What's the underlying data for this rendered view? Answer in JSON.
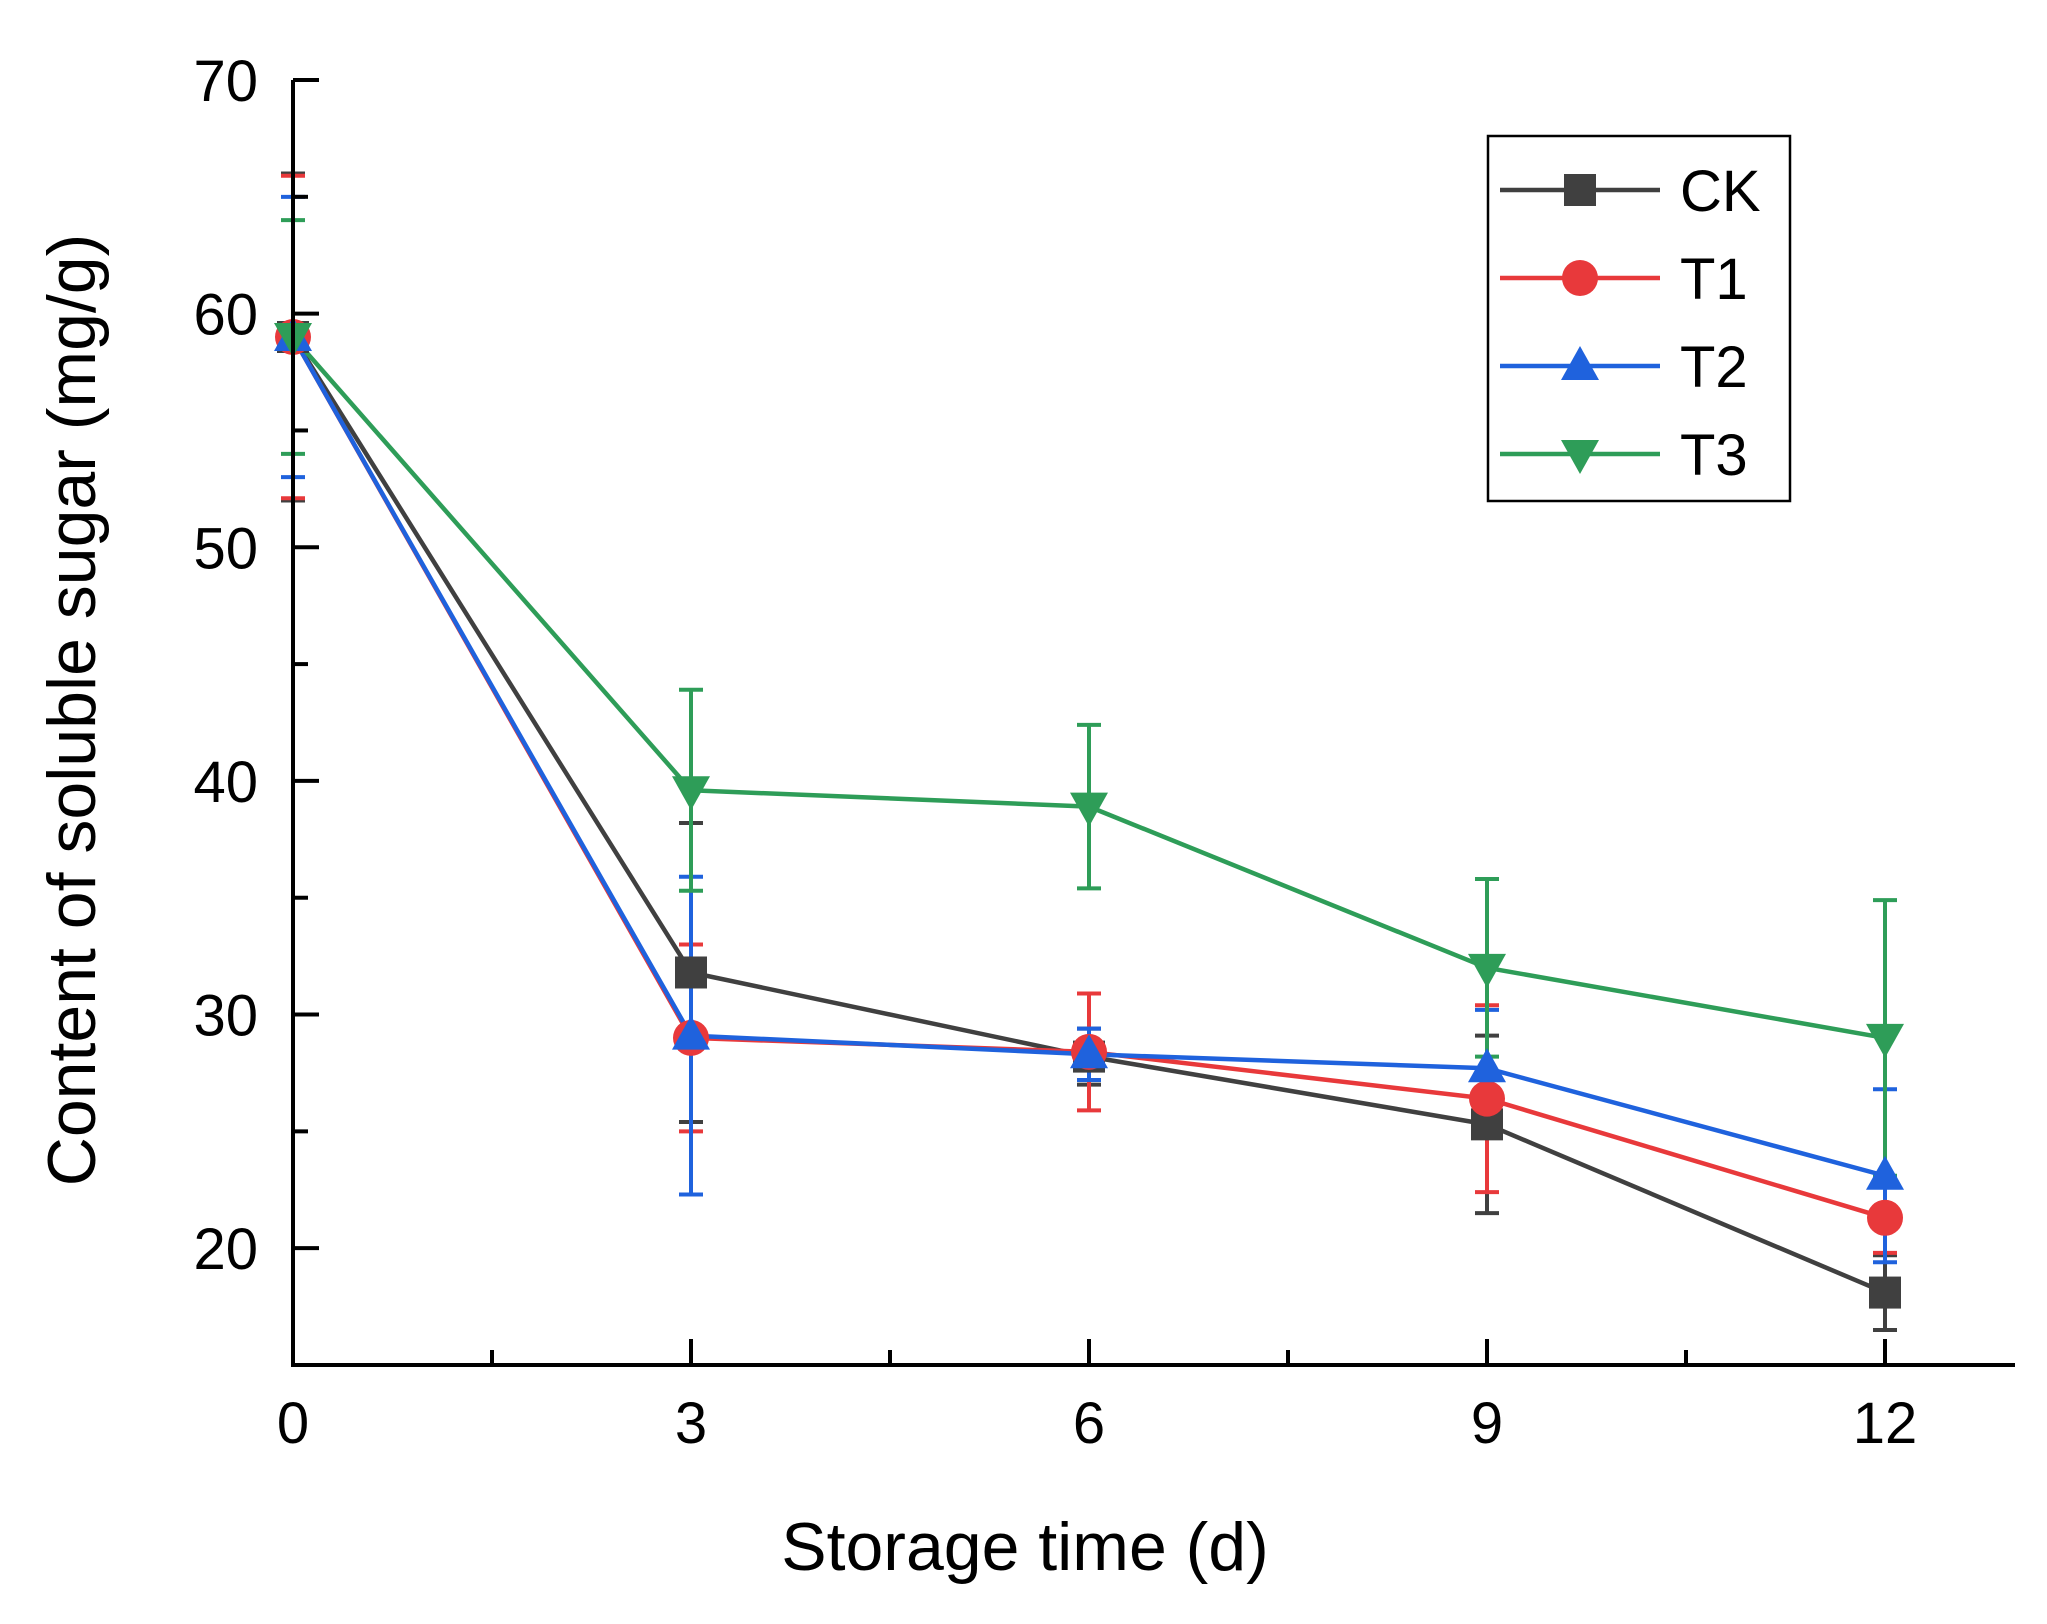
{
  "chart_data": {
    "type": "line",
    "title": "",
    "xlabel": "Storage time (d)",
    "ylabel": "Content of soluble sugar (mg/g)",
    "x": [
      0,
      3,
      6,
      9,
      12
    ],
    "xticks": [
      0,
      3,
      6,
      9,
      12
    ],
    "xlim": [
      0,
      13
    ],
    "ylim": [
      15,
      70
    ],
    "yticks": [
      20,
      30,
      40,
      50,
      60,
      70
    ],
    "legend_position": "top-right",
    "series": [
      {
        "name": "CK",
        "color": "#404040",
        "marker": "square",
        "values": [
          59.0,
          31.8,
          28.2,
          25.3,
          18.1
        ],
        "errors": [
          7.0,
          6.4,
          1.2,
          3.8,
          1.6
        ]
      },
      {
        "name": "T1",
        "color": "#e8393b",
        "marker": "circle",
        "values": [
          59.0,
          29.0,
          28.4,
          26.4,
          21.3
        ],
        "errors": [
          6.9,
          4.0,
          2.5,
          4.0,
          1.5
        ]
      },
      {
        "name": "T2",
        "color": "#1f62dd",
        "marker": "triangle-up",
        "values": [
          59.0,
          29.1,
          28.3,
          27.7,
          23.1
        ],
        "errors": [
          6.0,
          6.8,
          1.1,
          2.5,
          3.7
        ]
      },
      {
        "name": "T3",
        "color": "#2e9d58",
        "marker": "triangle-down",
        "values": [
          59.0,
          39.6,
          38.9,
          32.0,
          29.0
        ],
        "errors": [
          5.0,
          4.3,
          3.5,
          3.8,
          5.9
        ]
      }
    ]
  }
}
